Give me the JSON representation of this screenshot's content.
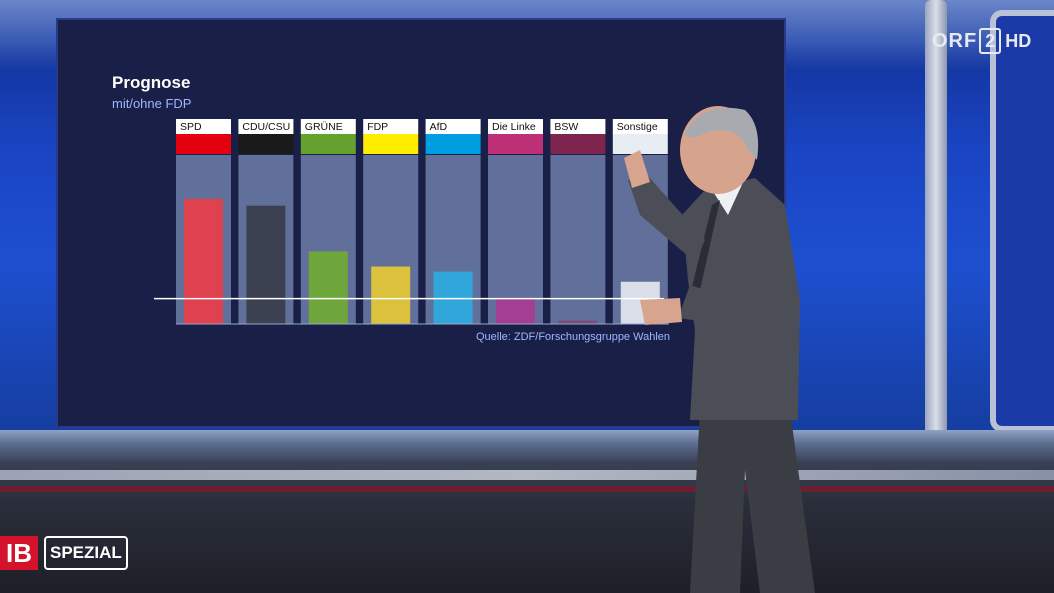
{
  "broadcast": {
    "channel_logo": "ORF",
    "channel_number": "2",
    "channel_quality": "HD",
    "show_logo": "IB",
    "show_badge": "SPEZIAL"
  },
  "chart_data": {
    "type": "bar",
    "title": "Prognose",
    "subtitle": "mit/ohne FDP",
    "source": "Quelle: ZDF/Forschungsgruppe Wahlen",
    "categories": [
      "SPD",
      "CDU/CSU",
      "GRÜNE",
      "FDP",
      "AfD",
      "Die Linke",
      "BSW",
      "Sonstige"
    ],
    "colors": [
      "#e3000f",
      "#1a1a1a",
      "#64a12d",
      "#ffed00",
      "#009ee0",
      "#be3075",
      "#7d254f",
      "#e8ecf3"
    ],
    "bar_colors": [
      "#e0414f",
      "#3b4150",
      "#6ea63c",
      "#dcc13c",
      "#31a6db",
      "#a23f93",
      "#7c4b78",
      "#d9dee9"
    ],
    "values": [
      0.74,
      0.7,
      0.43,
      0.34,
      0.31,
      0.15,
      0.02,
      0.25
    ],
    "value_unit": "fraction of track height (no values printed)",
    "baseline_fraction": 0.15,
    "legend": "none",
    "grid": false
  }
}
